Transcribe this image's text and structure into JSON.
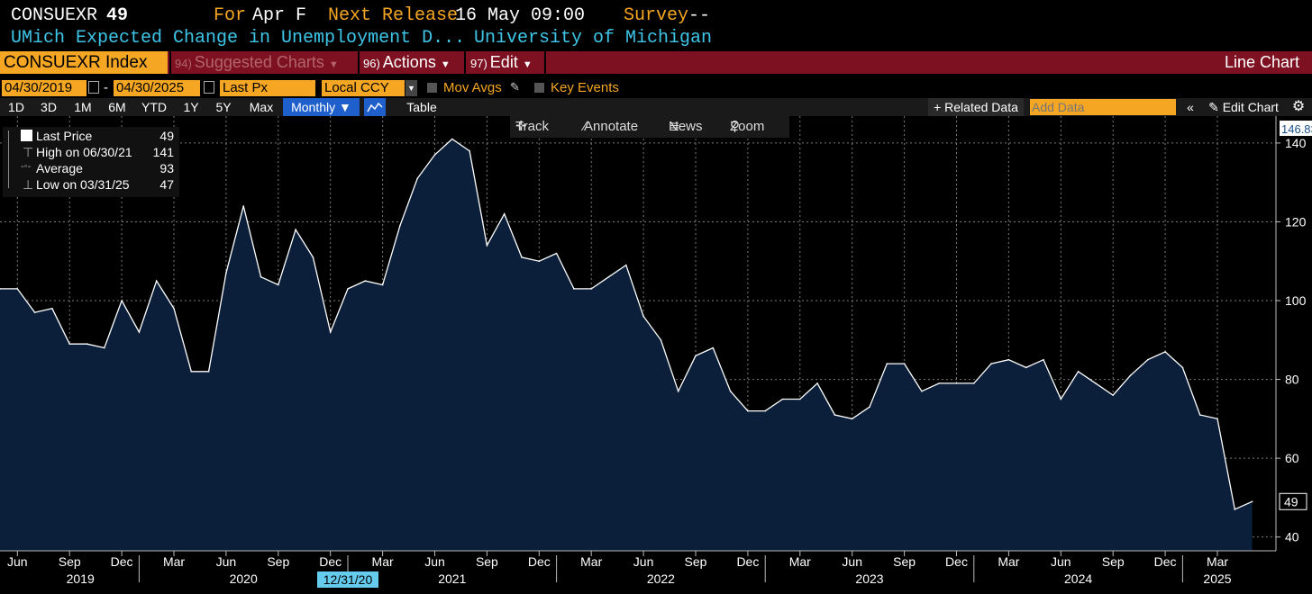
{
  "header": {
    "ticker": "CONSUEXR",
    "value": "49",
    "for_label": "For",
    "for_value": "Apr F",
    "next_label": "Next Release",
    "next_value": "16 May 09:00",
    "survey_label": "Survey",
    "survey_value": "--",
    "description": "UMich Expected Change in Unemployment D...",
    "source": "University of Michigan"
  },
  "menubar": {
    "index": "CONSUEXR Index",
    "suggested_num": "94)",
    "suggested": "Suggested Charts",
    "actions_num": "96)",
    "actions": "Actions",
    "edit_num": "97)",
    "edit": "Edit",
    "chart_type": "Line Chart"
  },
  "options": {
    "start_date": "04/30/2019",
    "dash": "-",
    "end_date": "04/30/2025",
    "field": "Last Px",
    "currency": "Local CCY",
    "mov_avgs": "Mov Avgs",
    "key_events": "Key Events"
  },
  "ranges": [
    "1D",
    "3D",
    "1M",
    "6M",
    "YTD",
    "1Y",
    "5Y",
    "Max"
  ],
  "period": "Monthly ▼",
  "table_label": "Table",
  "related_data": "+ Related Data",
  "add_data_placeholder": "Add Data",
  "edit_chart": "Edit Chart",
  "chart_tools": {
    "track": "Track",
    "annotate": "Annotate",
    "news": "News",
    "zoom": "Zoom"
  },
  "legend": {
    "last_label": "Last Price",
    "last_value": "49",
    "high_label": "High on 06/30/21",
    "high_value": "141",
    "avg_label": "Average",
    "avg_value": "93",
    "low_label": "Low on 03/31/25",
    "low_value": "47"
  },
  "colors": {
    "orange": "#f5a623",
    "cyan": "#3ec6e8",
    "menu_red": "#7d1122",
    "area_fill": "#0b1f3a",
    "line": "#ffffff",
    "highlight_blue": "#1f5fcc"
  },
  "chart_data": {
    "type": "area",
    "x_start": "04/30/2019",
    "x_end": "04/30/2025",
    "frequency": "monthly",
    "values": [
      103,
      103,
      97,
      98,
      89,
      89,
      88,
      100,
      92,
      105,
      98,
      82,
      82,
      107,
      124,
      106,
      104,
      118,
      111,
      92,
      103,
      105,
      104,
      119,
      131,
      137,
      141,
      138,
      114,
      122,
      111,
      110,
      112,
      103,
      103,
      106,
      109,
      96,
      90,
      77,
      86,
      88,
      77,
      72,
      72,
      75,
      75,
      79,
      71,
      70,
      73,
      84,
      84,
      77,
      79,
      79,
      79,
      84,
      85,
      83,
      85,
      75,
      82,
      79,
      76,
      81,
      85,
      87,
      83,
      71,
      70,
      47,
      49
    ],
    "ylim": [
      36.5,
      146.83
    ],
    "yticks": [
      40,
      60,
      80,
      100,
      120,
      140
    ],
    "y_top_label": "146.83",
    "last_value_label": "49",
    "x_month_labels": [
      "Jun",
      "Sep",
      "Dec",
      "Mar",
      "Jun",
      "Sep",
      "Dec",
      "Mar",
      "Jun",
      "Sep",
      "Dec",
      "Mar",
      "Jun",
      "Sep",
      "Dec",
      "Mar",
      "Jun",
      "Sep",
      "Dec",
      "Mar",
      "Jun",
      "Sep",
      "Dec",
      "Mar"
    ],
    "x_year_labels": [
      "2019",
      "2020",
      "2021",
      "2022",
      "2023",
      "2024",
      "2025"
    ],
    "crosshair_date": "12/31/20",
    "grid": true
  }
}
